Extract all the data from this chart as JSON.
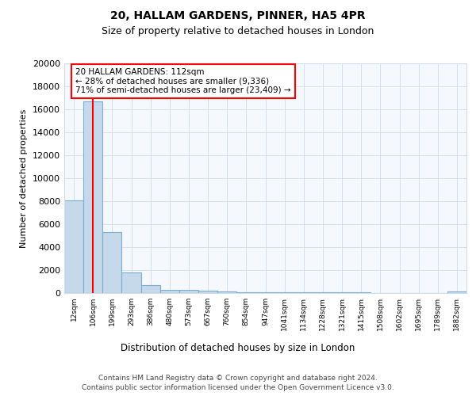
{
  "title1": "20, HALLAM GARDENS, PINNER, HA5 4PR",
  "title2": "Size of property relative to detached houses in London",
  "xlabel": "Distribution of detached houses by size in London",
  "ylabel": "Number of detached properties",
  "categories": [
    "12sqm",
    "106sqm",
    "199sqm",
    "293sqm",
    "386sqm",
    "480sqm",
    "573sqm",
    "667sqm",
    "760sqm",
    "854sqm",
    "947sqm",
    "1041sqm",
    "1134sqm",
    "1228sqm",
    "1321sqm",
    "1415sqm",
    "1508sqm",
    "1602sqm",
    "1695sqm",
    "1789sqm",
    "1882sqm"
  ],
  "values": [
    8100,
    16700,
    5300,
    1800,
    700,
    300,
    260,
    180,
    130,
    100,
    80,
    70,
    60,
    50,
    40,
    35,
    30,
    25,
    20,
    18,
    150
  ],
  "bar_color": "#c5d9ea",
  "bar_edge_color": "#7aafd4",
  "red_line_index": 1,
  "annotation_text": "20 HALLAM GARDENS: 112sqm\n← 28% of detached houses are smaller (9,336)\n71% of semi-detached houses are larger (23,409) →",
  "annotation_box_color": "white",
  "annotation_box_edge_color": "red",
  "ylim": [
    0,
    20000
  ],
  "yticks": [
    0,
    2000,
    4000,
    6000,
    8000,
    10000,
    12000,
    14000,
    16000,
    18000,
    20000
  ],
  "footer1": "Contains HM Land Registry data © Crown copyright and database right 2024.",
  "footer2": "Contains public sector information licensed under the Open Government Licence v3.0.",
  "background_color": "#ffffff",
  "plot_background": "#f5f8fc",
  "grid_color": "#d0dce8"
}
